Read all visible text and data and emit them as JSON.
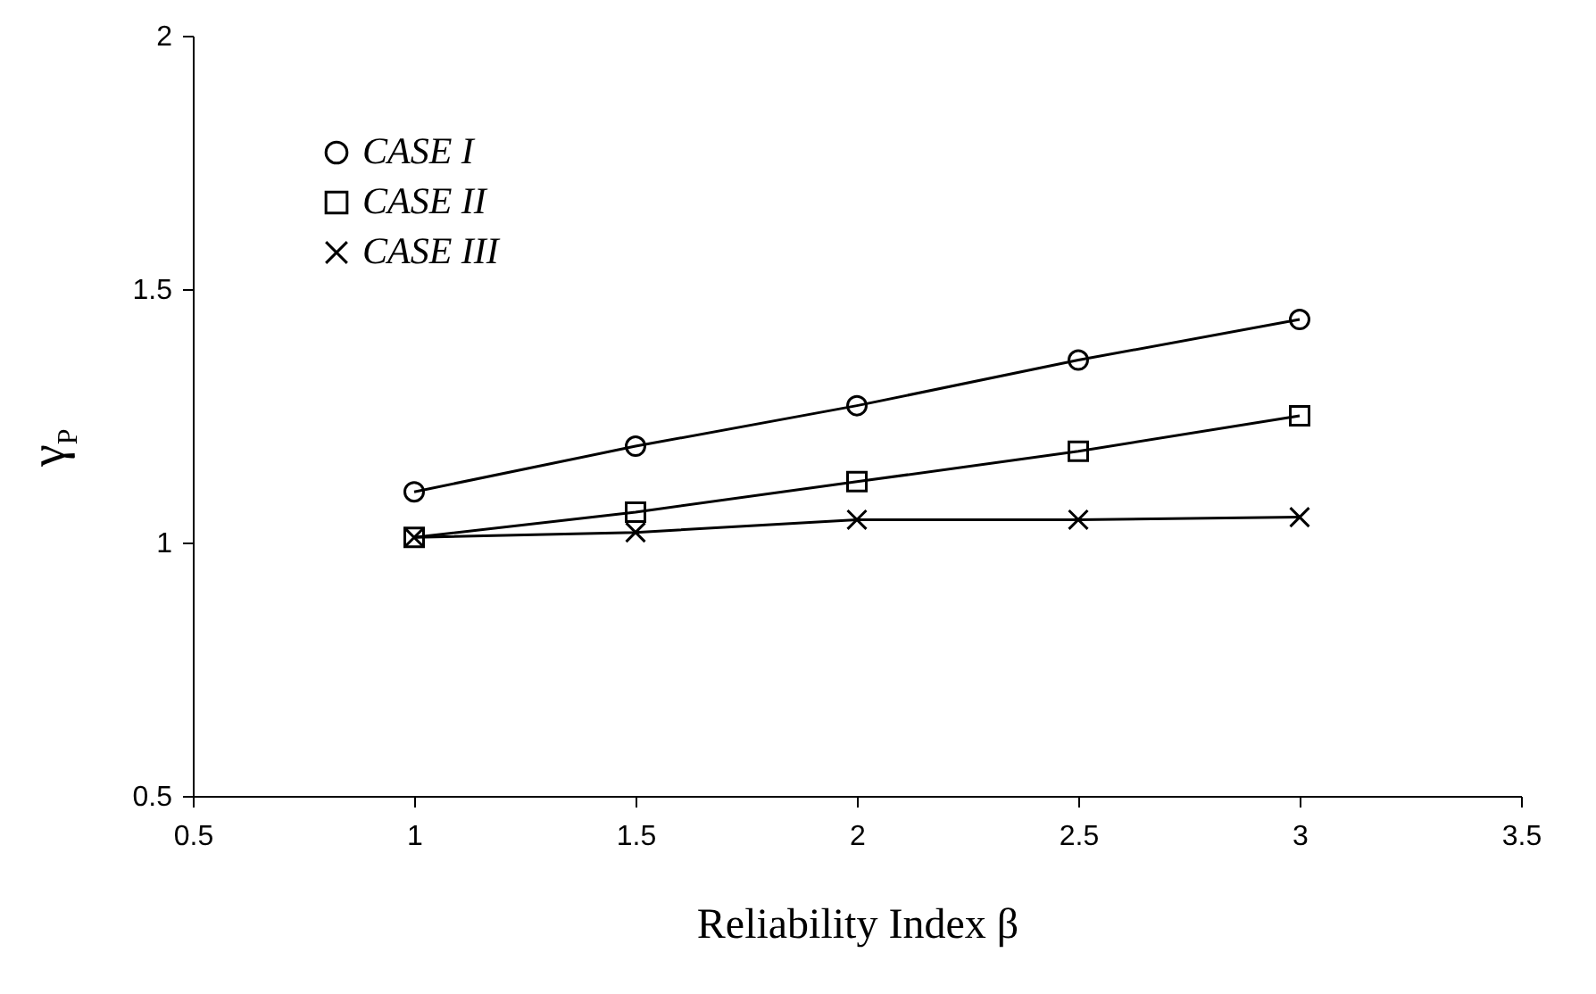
{
  "chart_data": {
    "type": "line",
    "xlabel": "Reliability Index β",
    "ylabel": "γ$_{P}$",
    "x": [
      1,
      1.5,
      2,
      2.5,
      3
    ],
    "series": [
      {
        "name": "CASE I",
        "color": "#000000",
        "marker": "circle",
        "values": [
          1.1,
          1.19,
          1.27,
          1.36,
          1.44
        ]
      },
      {
        "name": "CASE II",
        "color": "#000000",
        "marker": "square",
        "values": [
          1.01,
          1.06,
          1.12,
          1.18,
          1.25
        ]
      },
      {
        "name": "CASE III",
        "color": "#000000",
        "marker": "cross",
        "values": [
          1.01,
          1.02,
          1.045,
          1.045,
          1.05
        ]
      }
    ],
    "xlim": [
      0.5,
      3.5
    ],
    "xticks": [
      0.5,
      1,
      1.5,
      2,
      2.5,
      3,
      3.5
    ],
    "ylim": [
      0.5,
      2
    ],
    "yticks": [
      0.5,
      1,
      1.5,
      2
    ],
    "legend": "top left",
    "line_style": "solid",
    "grid": false
  }
}
